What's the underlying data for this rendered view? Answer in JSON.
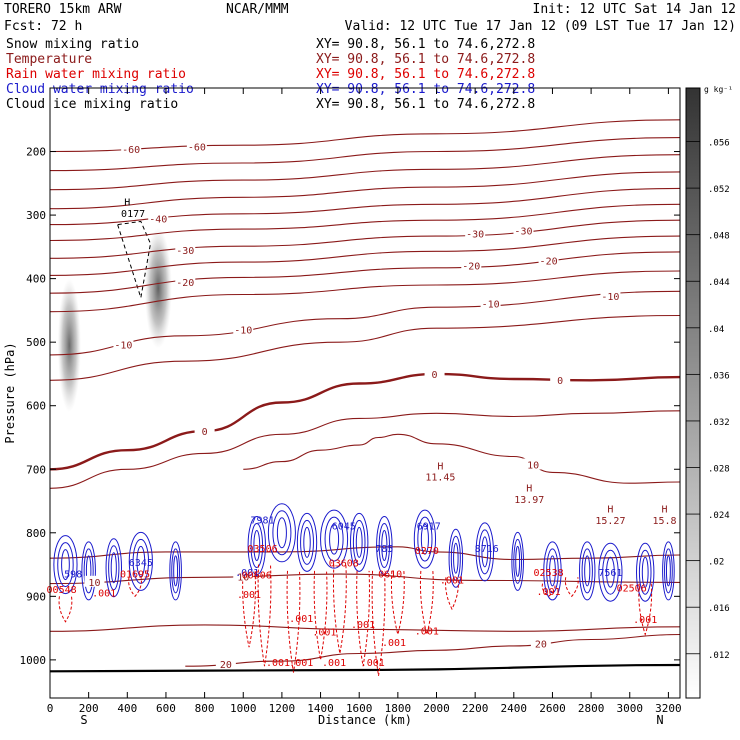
{
  "header": {
    "model": "TORERO  15km ARW",
    "center": "NCAR/MMM",
    "init": "Init: 12 UTC Sat 14 Jan 12",
    "fcst": "Fcst:   72 h",
    "valid": "Valid: 12 UTC Tue 17 Jan 12 (09 LST Tue 17 Jan 12)"
  },
  "legend": [
    {
      "label": "Snow mixing ratio",
      "xy": "XY=  90.8, 56.1 to  74.6,272.8",
      "color": "#000000"
    },
    {
      "label": "Temperature",
      "xy": "XY=  90.8, 56.1 to  74.6,272.8",
      "color": "#8b1a1a"
    },
    {
      "label": "Rain water mixing ratio",
      "xy": "XY=  90.8, 56.1 to  74.6,272.8",
      "color": "#dd0000"
    },
    {
      "label": "Cloud water mixing ratio",
      "xy": "XY=  90.8, 56.1 to  74.6,272.8",
      "color": "#1a1acc"
    },
    {
      "label": "Cloud ice mixing ratio",
      "xy": "XY=  90.8, 56.1 to  74.6,272.8",
      "color": "#000000"
    }
  ],
  "colorbar": {
    "unit": "g kg⁻¹",
    "ticks": [
      ".056",
      ".052",
      ".048",
      ".044",
      ".04",
      ".036",
      ".032",
      ".028",
      ".024",
      ".02",
      ".016",
      ".012"
    ]
  },
  "chart_data": {
    "type": "cross-section contour",
    "xlabel": "Distance (km)",
    "ylabel": "Pressure (hPa)",
    "xlim": [
      0,
      3260
    ],
    "ylim": [
      1060,
      100
    ],
    "x_ticks": [
      0,
      200,
      400,
      600,
      800,
      1000,
      1200,
      1400,
      1600,
      1800,
      2000,
      2200,
      2400,
      2600,
      2800,
      3000,
      3200
    ],
    "y_ticks": [
      200,
      300,
      400,
      500,
      600,
      700,
      800,
      900,
      1000
    ],
    "endpoints": {
      "left": "S",
      "right": "N"
    },
    "temperature_contours": [
      {
        "level": -60,
        "points": [
          [
            0,
            200
          ],
          [
            1000,
            190
          ],
          [
            2000,
            172
          ],
          [
            3260,
            150
          ]
        ],
        "labels": [
          {
            "x": 420,
            "text": "-60"
          },
          {
            "x": 760,
            "text": "-60"
          }
        ]
      },
      {
        "level": -55,
        "points": [
          [
            0,
            230
          ],
          [
            1000,
            218
          ],
          [
            2000,
            200
          ],
          [
            3260,
            178
          ]
        ],
        "labels": []
      },
      {
        "level": -50,
        "points": [
          [
            0,
            260
          ],
          [
            1000,
            245
          ],
          [
            2000,
            228
          ],
          [
            3260,
            205
          ]
        ],
        "labels": []
      },
      {
        "level": -45,
        "points": [
          [
            0,
            290
          ],
          [
            1000,
            272
          ],
          [
            2000,
            256
          ],
          [
            3260,
            232
          ]
        ],
        "labels": []
      },
      {
        "level": -40,
        "points": [
          [
            0,
            315
          ],
          [
            1000,
            298
          ],
          [
            2000,
            283
          ],
          [
            3260,
            258
          ]
        ],
        "labels": [
          {
            "x": 560,
            "text": "-40"
          }
        ]
      },
      {
        "level": -35,
        "points": [
          [
            0,
            340
          ],
          [
            1000,
            322
          ],
          [
            2000,
            308
          ],
          [
            3260,
            283
          ]
        ],
        "labels": []
      },
      {
        "level": -30,
        "points": [
          [
            0,
            368
          ],
          [
            1000,
            349
          ],
          [
            2000,
            333
          ],
          [
            3260,
            308
          ]
        ],
        "labels": [
          {
            "x": 700,
            "text": "-30"
          },
          {
            "x": 2200,
            "text": "-30"
          },
          {
            "x": 2450,
            "text": "-30"
          }
        ]
      },
      {
        "level": -25,
        "points": [
          [
            0,
            395
          ],
          [
            1000,
            374
          ],
          [
            2000,
            357
          ],
          [
            3260,
            333
          ]
        ],
        "labels": []
      },
      {
        "level": -20,
        "points": [
          [
            0,
            423
          ],
          [
            1000,
            398
          ],
          [
            2000,
            383
          ],
          [
            3260,
            358
          ]
        ],
        "labels": [
          {
            "x": 700,
            "text": "-20"
          },
          {
            "x": 2180,
            "text": "-20"
          },
          {
            "x": 2580,
            "text": "-20"
          }
        ]
      },
      {
        "level": -15,
        "points": [
          [
            0,
            452
          ],
          [
            1000,
            425
          ],
          [
            2000,
            410
          ],
          [
            3260,
            388
          ]
        ],
        "labels": []
      },
      {
        "level": -10,
        "points": [
          [
            0,
            520
          ],
          [
            700,
            490
          ],
          [
            1500,
            463
          ],
          [
            2000,
            445
          ],
          [
            3260,
            420
          ]
        ],
        "labels": [
          {
            "x": 380,
            "text": "-10"
          },
          {
            "x": 1000,
            "text": "-10"
          },
          {
            "x": 2280,
            "text": "-10"
          },
          {
            "x": 2900,
            "text": "-10"
          }
        ]
      },
      {
        "level": -5,
        "points": [
          [
            0,
            560
          ],
          [
            700,
            530
          ],
          [
            1500,
            500
          ],
          [
            2000,
            478
          ],
          [
            3260,
            458
          ]
        ],
        "labels": []
      },
      {
        "level": 0,
        "points": [
          [
            0,
            700
          ],
          [
            400,
            670
          ],
          [
            800,
            640
          ],
          [
            1200,
            595
          ],
          [
            1600,
            565
          ],
          [
            2000,
            550
          ],
          [
            2400,
            558
          ],
          [
            2800,
            560
          ],
          [
            3260,
            555
          ]
        ],
        "labels": [
          {
            "x": 800,
            "text": "0"
          },
          {
            "x": 1990,
            "text": "0"
          },
          {
            "x": 2640,
            "text": "0"
          }
        ]
      },
      {
        "level": 5,
        "points": [
          [
            0,
            730
          ],
          [
            400,
            700
          ],
          [
            800,
            675
          ],
          [
            1200,
            645
          ],
          [
            1600,
            620
          ],
          [
            2000,
            612
          ],
          [
            2400,
            617
          ],
          [
            2800,
            612
          ],
          [
            3260,
            608
          ]
        ],
        "labels": []
      },
      {
        "level": 10,
        "points": [
          [
            1000,
            700
          ],
          [
            1200,
            688
          ],
          [
            1400,
            670
          ],
          [
            1600,
            662
          ],
          [
            1700,
            650
          ],
          [
            1800,
            645
          ],
          [
            2000,
            660
          ],
          [
            2400,
            680
          ],
          [
            2600,
            705
          ],
          [
            3000,
            722
          ],
          [
            3260,
            720
          ]
        ],
        "labels": [
          {
            "x": 2500,
            "text": "10"
          }
        ]
      },
      {
        "level": 15,
        "points": [
          [
            0,
            840
          ],
          [
            600,
            830
          ],
          [
            1200,
            830
          ],
          [
            1800,
            822
          ],
          [
            2000,
            830
          ],
          [
            2400,
            842
          ],
          [
            2800,
            840
          ],
          [
            3260,
            835
          ]
        ],
        "labels": []
      },
      {
        "level": 10,
        "points": [
          [
            0,
            880
          ],
          [
            800,
            870
          ],
          [
            1500,
            865
          ],
          [
            2200,
            875
          ],
          [
            3260,
            878
          ]
        ],
        "labels": [
          {
            "x": 1000,
            "text": "10"
          },
          {
            "x": 230,
            "text": "10"
          }
        ]
      },
      {
        "level": 20,
        "points": [
          [
            0,
            955
          ],
          [
            800,
            945
          ],
          [
            1600,
            952
          ],
          [
            2400,
            955
          ],
          [
            3260,
            948
          ]
        ],
        "labels": []
      },
      {
        "level": 20,
        "points": [
          [
            700,
            1010
          ],
          [
            1200,
            1002
          ],
          [
            1600,
            990
          ],
          [
            2000,
            985
          ],
          [
            2400,
            978
          ],
          [
            2800,
            968
          ],
          [
            3260,
            960
          ]
        ],
        "labels": [
          {
            "x": 2540,
            "text": "20"
          },
          {
            "x": 910,
            "text": "20"
          }
        ]
      }
    ],
    "surface_line": [
      [
        0,
        1018
      ],
      [
        1600,
        1016
      ],
      [
        3260,
        1008
      ]
    ],
    "annotations": [
      {
        "x": 2020,
        "p": 700,
        "text": "H"
      },
      {
        "x": 2020,
        "p": 718,
        "text": "11.45"
      },
      {
        "x": 2480,
        "p": 735,
        "text": "H"
      },
      {
        "x": 2480,
        "p": 753,
        "text": "13.97"
      },
      {
        "x": 2900,
        "p": 768,
        "text": "H"
      },
      {
        "x": 2900,
        "p": 786,
        "text": "15.27"
      },
      {
        "x": 3180,
        "p": 768,
        "text": "H"
      },
      {
        "x": 3180,
        "p": 786,
        "text": "15.8"
      }
    ],
    "ice_annotations": [
      {
        "x": 400,
        "p": 285,
        "text": "H"
      },
      {
        "x": 430,
        "p": 303,
        "text": "0177"
      }
    ],
    "cloud_water_labels": [
      {
        "x": 120,
        "p": 870,
        "text": "598"
      },
      {
        "x": 470,
        "p": 852,
        "text": "6345"
      },
      {
        "x": 1100,
        "p": 785,
        "text": "7981"
      },
      {
        "x": 1520,
        "p": 795,
        "text": "6045"
      },
      {
        "x": 1730,
        "p": 830,
        "text": "785"
      },
      {
        "x": 1960,
        "p": 795,
        "text": "6917"
      },
      {
        "x": 2260,
        "p": 830,
        "text": "8716"
      },
      {
        "x": 2900,
        "p": 868,
        "text": "7561"
      },
      {
        "x": 1020,
        "p": 868,
        "text": ".001"
      }
    ],
    "rain_labels": [
      {
        "x": 60,
        "p": 895,
        "text": "00548"
      },
      {
        "x": 440,
        "p": 870,
        "text": "01695"
      },
      {
        "x": 1100,
        "p": 830,
        "text": "03506"
      },
      {
        "x": 1520,
        "p": 853,
        "text": "03608"
      },
      {
        "x": 1070,
        "p": 872,
        "text": "00606"
      },
      {
        "x": 1760,
        "p": 870,
        "text": "0610"
      },
      {
        "x": 1950,
        "p": 833,
        "text": "0270"
      },
      {
        "x": 2080,
        "p": 880,
        "text": ".001"
      },
      {
        "x": 2580,
        "p": 868,
        "text": "02538"
      },
      {
        "x": 3010,
        "p": 892,
        "text": "02506"
      },
      {
        "x": 280,
        "p": 900,
        "text": ".001"
      },
      {
        "x": 1030,
        "p": 903,
        "text": ".001"
      },
      {
        "x": 2580,
        "p": 898,
        "text": ".001"
      },
      {
        "x": 3080,
        "p": 942,
        "text": ".001"
      },
      {
        "x": 1300,
        "p": 940,
        "text": ".001"
      },
      {
        "x": 1420,
        "p": 962,
        "text": ".001"
      },
      {
        "x": 1620,
        "p": 950,
        "text": ".001"
      },
      {
        "x": 1780,
        "p": 978,
        "text": ".001"
      },
      {
        "x": 1950,
        "p": 960,
        "text": ".001"
      },
      {
        "x": 1180,
        "p": 1010,
        "text": ".001"
      },
      {
        "x": 1300,
        "p": 1010,
        "text": ".001"
      },
      {
        "x": 1470,
        "p": 1010,
        "text": ".001"
      },
      {
        "x": 1670,
        "p": 1010,
        "text": ".001"
      }
    ],
    "ice_shading": [
      {
        "x": 100,
        "p_top": 400,
        "p_bot": 610,
        "width_km": 120,
        "strength": 0.75
      },
      {
        "x": 560,
        "p_top": 320,
        "p_bot": 510,
        "width_km": 140,
        "strength": 0.8
      }
    ]
  }
}
